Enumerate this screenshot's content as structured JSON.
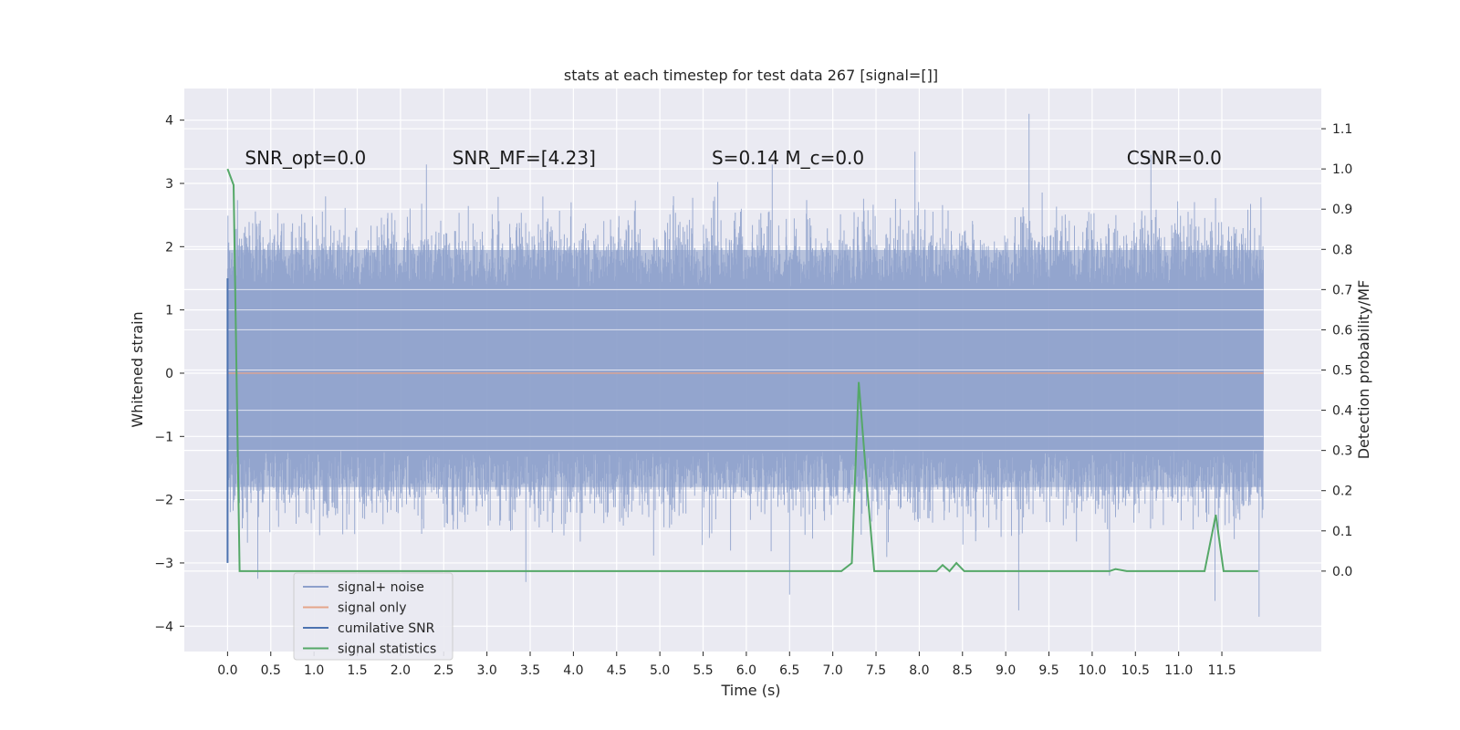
{
  "chart_data": {
    "type": "line",
    "title": "stats at each timestep for test data 267 [signal=[]]",
    "xlabel": "Time (s)",
    "ylabel_left": "Whitened strain",
    "ylabel_right": "Detection probability/MF",
    "xlim": [
      -0.5,
      12.65
    ],
    "ylim_left": [
      -4.4,
      4.5
    ],
    "ylim_right": [
      -0.2,
      1.2
    ],
    "x_ticks": [
      0.0,
      0.5,
      1.0,
      1.5,
      2.0,
      2.5,
      3.0,
      3.5,
      4.0,
      4.5,
      5.0,
      5.5,
      6.0,
      6.5,
      7.0,
      7.5,
      8.0,
      8.5,
      9.0,
      9.5,
      10.0,
      10.5,
      11.0,
      11.5
    ],
    "x_tick_labels": [
      "0.0",
      "0.5",
      "1.0",
      "1.5",
      "2.0",
      "2.5",
      "3.0",
      "3.5",
      "4.0",
      "4.5",
      "5.0",
      "5.5",
      "6.0",
      "6.5",
      "7.0",
      "7.5",
      "8.0",
      "8.5",
      "9.0",
      "9.5",
      "10.0",
      "10.5",
      "11.0",
      "11.5"
    ],
    "y_left_ticks": [
      4,
      3,
      2,
      1,
      0,
      -1,
      -2,
      -3,
      -4
    ],
    "y_left_tick_labels": [
      "4",
      "3",
      "2",
      "1",
      "0",
      "−1",
      "−2",
      "−3",
      "−4"
    ],
    "y_right_ticks": [
      1.1,
      1.0,
      0.9,
      0.8,
      0.7,
      0.6,
      0.5,
      0.4,
      0.3,
      0.2,
      0.1,
      0.0
    ],
    "y_right_tick_labels": [
      "1.1",
      "1.0",
      "0.9",
      "0.8",
      "0.7",
      "0.6",
      "0.5",
      "0.4",
      "0.3",
      "0.2",
      "0.1",
      "0.0"
    ],
    "grid": true,
    "legend_position": "bottom-left",
    "annotations": [
      {
        "id": "snr-opt",
        "text": "SNR_opt=0.0",
        "x": 0.2,
        "y": 3.3
      },
      {
        "id": "snr-mf",
        "text": "SNR_MF=[4.23]",
        "x": 2.6,
        "y": 3.3
      },
      {
        "id": "s-mc",
        "text": "S=0.14   M_c=0.0",
        "x": 5.6,
        "y": 3.3
      },
      {
        "id": "csnr",
        "text": "CSNR=0.0",
        "x": 10.4,
        "y": 3.3
      }
    ],
    "series": [
      {
        "name": "signal+ noise",
        "axis": "left",
        "color": "#8da0cb",
        "render": "noise-envelope",
        "x_range": [
          0.0,
          11.98
        ],
        "core_band": [
          -1.8,
          1.95
        ],
        "max_excursion": [
          -3.85,
          4.1
        ],
        "spikes": [
          {
            "x": 9.27,
            "y": 4.1
          },
          {
            "x": 7.95,
            "y": 3.5
          },
          {
            "x": 10.68,
            "y": 3.45
          },
          {
            "x": 2.3,
            "y": 3.3
          },
          {
            "x": 6.3,
            "y": 3.3
          },
          {
            "x": 11.93,
            "y": -3.85
          },
          {
            "x": 9.15,
            "y": -3.75
          },
          {
            "x": 11.42,
            "y": -3.6
          },
          {
            "x": 6.5,
            "y": -3.5
          },
          {
            "x": 3.45,
            "y": -3.3
          },
          {
            "x": 0.35,
            "y": -3.25
          },
          {
            "x": 10.2,
            "y": -3.2
          }
        ]
      },
      {
        "name": "signal only",
        "axis": "left",
        "color": "#e5a58a",
        "x": [
          0.0,
          11.98
        ],
        "y": [
          0.0,
          0.0
        ]
      },
      {
        "name": "cumilative SNR",
        "axis": "left",
        "color": "#4c72b0",
        "x": [
          0.0,
          0.0
        ],
        "y": [
          -3.0,
          1.5
        ]
      },
      {
        "name": "signal statistics",
        "axis": "right",
        "color": "#55a868",
        "x": [
          0.0,
          0.07,
          0.14,
          0.2,
          1.0,
          2.0,
          3.0,
          4.0,
          5.0,
          6.0,
          6.5,
          7.0,
          7.1,
          7.22,
          7.3,
          7.4,
          7.48,
          7.6,
          8.0,
          8.2,
          8.27,
          8.35,
          8.43,
          8.52,
          8.6,
          9.0,
          10.0,
          10.2,
          10.27,
          10.4,
          11.0,
          11.3,
          11.43,
          11.52,
          11.6,
          11.92
        ],
        "y": [
          1.0,
          0.96,
          0.0,
          0.0,
          0.0,
          0.0,
          0.0,
          0.0,
          0.0,
          0.0,
          0.0,
          0.0,
          0.0,
          0.02,
          0.47,
          0.2,
          0.0,
          0.0,
          0.0,
          0.0,
          0.015,
          0.0,
          0.02,
          0.0,
          0.0,
          0.0,
          0.0,
          0.0,
          0.005,
          0.0,
          0.0,
          0.0,
          0.14,
          0.0,
          0.0,
          0.0
        ]
      }
    ]
  }
}
